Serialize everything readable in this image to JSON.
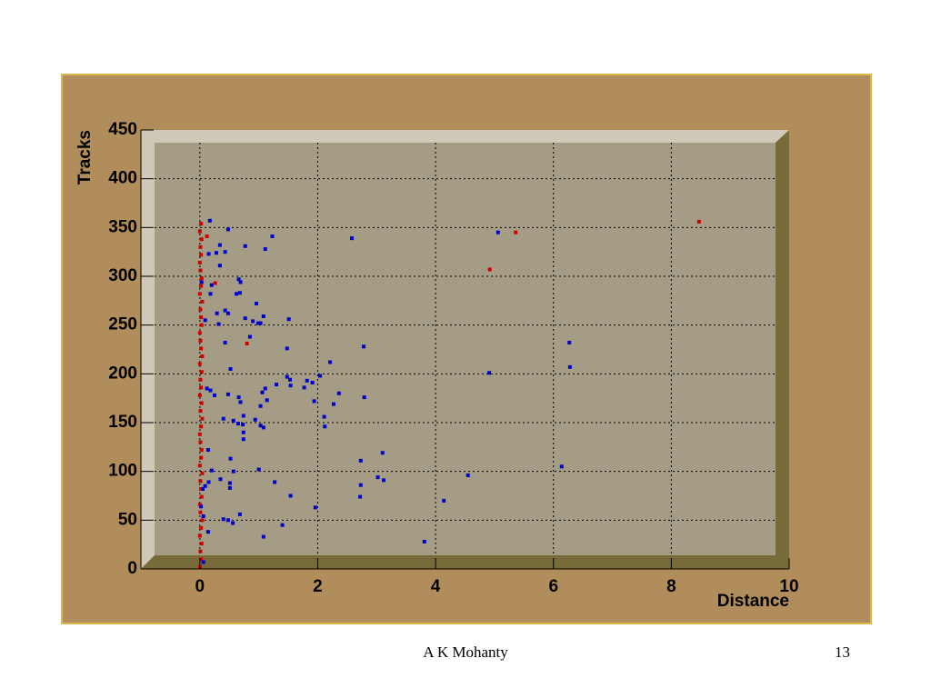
{
  "chart_data": {
    "type": "scatter",
    "x_label": "Distance",
    "y_label": "Tracks",
    "xlim": [
      -1,
      10
    ],
    "ylim": [
      0,
      450
    ],
    "xticks": [
      0,
      2,
      4,
      6,
      8,
      10
    ],
    "yticks": [
      0,
      50,
      100,
      150,
      200,
      250,
      300,
      350,
      400,
      450
    ],
    "grid": true,
    "series": [
      {
        "color": "#d00000",
        "x": [
          0.0,
          0.02,
          0.01,
          0.03,
          0.0,
          0.02,
          0.04,
          0.01,
          0.0,
          0.03,
          0.02,
          0.01,
          0.04,
          0.0,
          0.02,
          0.03,
          0.01,
          0.0,
          0.02,
          0.04,
          0.01,
          0.03,
          0.0,
          0.02,
          0.01,
          0.03,
          0.0,
          0.04,
          0.02,
          0.01,
          0.0,
          0.03,
          0.02,
          0.01,
          0.04,
          0.0,
          0.02,
          0.03,
          0.01,
          0.0,
          0.02,
          0.01,
          0.03,
          0.0,
          0.02,
          0.12,
          0.8,
          0.26,
          4.92,
          5.36,
          8.47
        ],
        "y": [
          2,
          10,
          18,
          26,
          34,
          42,
          50,
          58,
          66,
          74,
          82,
          90,
          98,
          106,
          114,
          122,
          130,
          138,
          146,
          154,
          162,
          170,
          178,
          186,
          194,
          202,
          210,
          218,
          226,
          234,
          242,
          250,
          258,
          266,
          274,
          282,
          290,
          298,
          306,
          314,
          322,
          330,
          338,
          346,
          354,
          341,
          231,
          293,
          307,
          345,
          356
        ]
      },
      {
        "color": "#0000cc",
        "x": [
          0.17,
          0.48,
          0.15,
          0.28,
          0.43,
          0.34,
          0.77,
          1.23,
          1.11,
          2.58,
          5.06,
          0.34,
          0.66,
          0.69,
          0.2,
          0.03,
          0.18,
          0.62,
          0.68,
          0.96,
          0.43,
          0.48,
          0.29,
          0.09,
          0.77,
          0.9,
          0.99,
          1.03,
          1.08,
          1.51,
          0.32,
          0.85,
          0.43,
          1.48,
          2.78,
          6.27,
          2.21,
          6.28,
          0.52,
          4.91,
          2.04,
          1.48,
          1.53,
          1.82,
          1.91,
          1.3,
          1.54,
          1.77,
          1.11,
          1.06,
          0.12,
          0.18,
          2.36,
          2.79,
          0.25,
          0.48,
          0.66,
          1.14,
          1.94,
          2.27,
          0.69,
          1.03,
          2.11,
          0.74,
          0.4,
          0.57,
          0.65,
          0.73,
          0.94,
          1.03,
          1.08,
          2.12,
          0.74,
          0.74,
          0.14,
          3.1,
          2.73,
          0.52,
          6.14,
          1.0,
          0.2,
          0.57,
          4.55,
          3.02,
          3.12,
          0.35,
          0.15,
          0.51,
          1.27,
          2.73,
          0.09,
          0.05,
          0.51,
          1.54,
          2.72,
          4.14,
          1.96,
          0.02,
          0.68,
          0.06,
          0.4,
          0.48,
          0.56,
          1.4,
          0.14,
          1.08,
          3.81,
          0.06
        ],
        "y": [
          357,
          348,
          323,
          324,
          325,
          332,
          331,
          341,
          328,
          339,
          345,
          311,
          297,
          294,
          291,
          294,
          282,
          282,
          283,
          272,
          265,
          262,
          262,
          255,
          257,
          254,
          252,
          252,
          259,
          256,
          251,
          238,
          232,
          226,
          228,
          232,
          212,
          207,
          205,
          201,
          198,
          197,
          194,
          193,
          191,
          189,
          188,
          186,
          185,
          181,
          185,
          183,
          180,
          176,
          178,
          179,
          176,
          173,
          172,
          169,
          171,
          167,
          156,
          157,
          154,
          152,
          149,
          148,
          153,
          147,
          145,
          146,
          140,
          133,
          122,
          119,
          111,
          113,
          105,
          102,
          101,
          100,
          96,
          94,
          91,
          92,
          89,
          88,
          89,
          86,
          85,
          82,
          83,
          75,
          74,
          70,
          63,
          64,
          56,
          54,
          51,
          50,
          47,
          45,
          38,
          33,
          28,
          7
        ]
      }
    ]
  },
  "footer": {
    "author": "A K Mohanty",
    "page": "13"
  }
}
